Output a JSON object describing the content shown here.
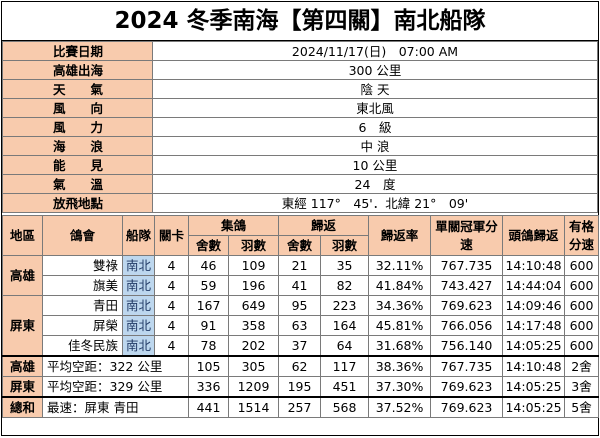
{
  "title": "2024 冬季南海【第四關】南北船隊",
  "info": [
    {
      "label": "比賽日期",
      "value": "2024/11/17(日)　07:00 AM"
    },
    {
      "label": "高雄出海",
      "value": "300 公里"
    },
    {
      "label": "天　　氣",
      "value": "陰 天"
    },
    {
      "label": "風　　向",
      "value": "東北風"
    },
    {
      "label": "風　　力",
      "value": "6　級"
    },
    {
      "label": "海　　浪",
      "value": "中 浪"
    },
    {
      "label": "能　　見",
      "value": "10 公里"
    },
    {
      "label": "氣　　溫",
      "value": "24　度"
    },
    {
      "label": "放飛地點",
      "value": "東經 117°　45'．北緯 21°　09'"
    }
  ],
  "headers": {
    "region": "地區",
    "club": "鴿會",
    "team": "船隊",
    "stage": "關卡",
    "ji": "集鴿",
    "gui": "歸返",
    "count": "舍數",
    "birds": "羽數",
    "rate": "歸返率",
    "champ_speed": "單關冠軍分速",
    "first": "頭鴿歸返",
    "valid": "有格分速"
  },
  "rows": [
    {
      "region": "高雄",
      "club": "雙祿",
      "team": "南北",
      "stage": "4",
      "ji_s": "46",
      "ji_b": "109",
      "gui_s": "21",
      "gui_b": "35",
      "rate": "32.11%",
      "speed": "767.735",
      "time": "14:10:48",
      "valid": "600"
    },
    {
      "region": "",
      "club": "旗美",
      "team": "南北",
      "stage": "4",
      "ji_s": "59",
      "ji_b": "196",
      "gui_s": "41",
      "gui_b": "82",
      "rate": "41.84%",
      "speed": "743.427",
      "time": "14:44:04",
      "valid": "600"
    },
    {
      "region": "屏東",
      "club": "青田",
      "team": "南北",
      "stage": "4",
      "ji_s": "167",
      "ji_b": "649",
      "gui_s": "95",
      "gui_b": "223",
      "rate": "34.36%",
      "speed": "769.623",
      "time": "14:09:46",
      "valid": "600"
    },
    {
      "region": "",
      "club": "屏榮",
      "team": "南北",
      "stage": "4",
      "ji_s": "91",
      "ji_b": "358",
      "gui_s": "63",
      "gui_b": "164",
      "rate": "45.81%",
      "speed": "766.056",
      "time": "14:17:48",
      "valid": "600"
    },
    {
      "region": "",
      "club": "佳冬民族",
      "team": "南北",
      "stage": "4",
      "ji_s": "78",
      "ji_b": "202",
      "gui_s": "37",
      "gui_b": "64",
      "rate": "31.68%",
      "speed": "756.140",
      "time": "14:05:25",
      "valid": "600"
    }
  ],
  "summary": [
    {
      "region": "高雄",
      "desc": "平均空距：322 公里",
      "ji_s": "105",
      "ji_b": "305",
      "gui_s": "62",
      "gui_b": "117",
      "rate": "38.36%",
      "speed": "767.735",
      "time": "14:10:48",
      "valid": "2舍"
    },
    {
      "region": "屏東",
      "desc": "平均空距：329 公里",
      "ji_s": "336",
      "ji_b": "1209",
      "gui_s": "195",
      "gui_b": "451",
      "rate": "37.30%",
      "speed": "769.623",
      "time": "14:05:25",
      "valid": "3舍"
    },
    {
      "region": "總和",
      "desc": "最速：屏東 青田",
      "ji_s": "441",
      "ji_b": "1514",
      "gui_s": "257",
      "gui_b": "568",
      "rate": "37.52%",
      "speed": "769.623",
      "time": "14:05:25",
      "valid": "5舍"
    }
  ]
}
